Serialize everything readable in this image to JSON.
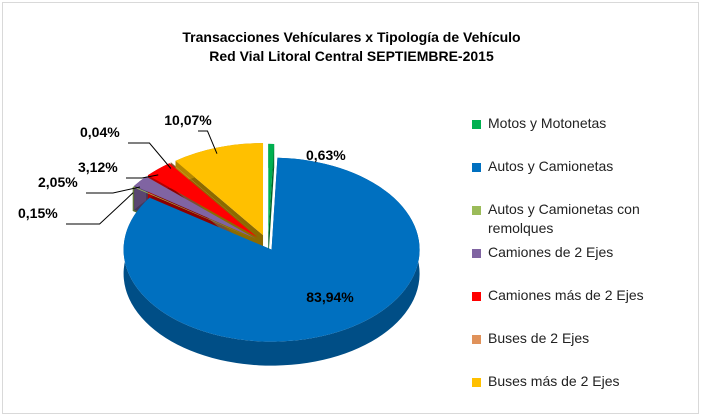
{
  "chart_data": {
    "type": "pie3d",
    "title": "Transacciones Vehículares x Tipología de Vehículo",
    "subtitle": "Red Vial Litoral Central  SEPTIEMBRE-2015",
    "categories": [
      "Motos y Motonetas",
      "Autos y Camionetas",
      "Autos y Camionetas con remolques",
      "Camiones de 2 Ejes",
      "Camiones más de 2 Ejes",
      "Buses de 2 Ejes",
      "Buses más de 2 Ejes"
    ],
    "values": [
      0.63,
      83.94,
      0.15,
      2.05,
      3.12,
      0.04,
      10.07
    ],
    "value_labels": [
      "0,63%",
      "83,94%",
      "0,15%",
      "2,05%",
      "3,12%",
      "0,04%",
      "10,07%"
    ],
    "colors": [
      "#00b050",
      "#0070c0",
      "#9bbb59",
      "#8064a2",
      "#ff0000",
      "#e0925a",
      "#ffc000"
    ],
    "legend": "right"
  }
}
